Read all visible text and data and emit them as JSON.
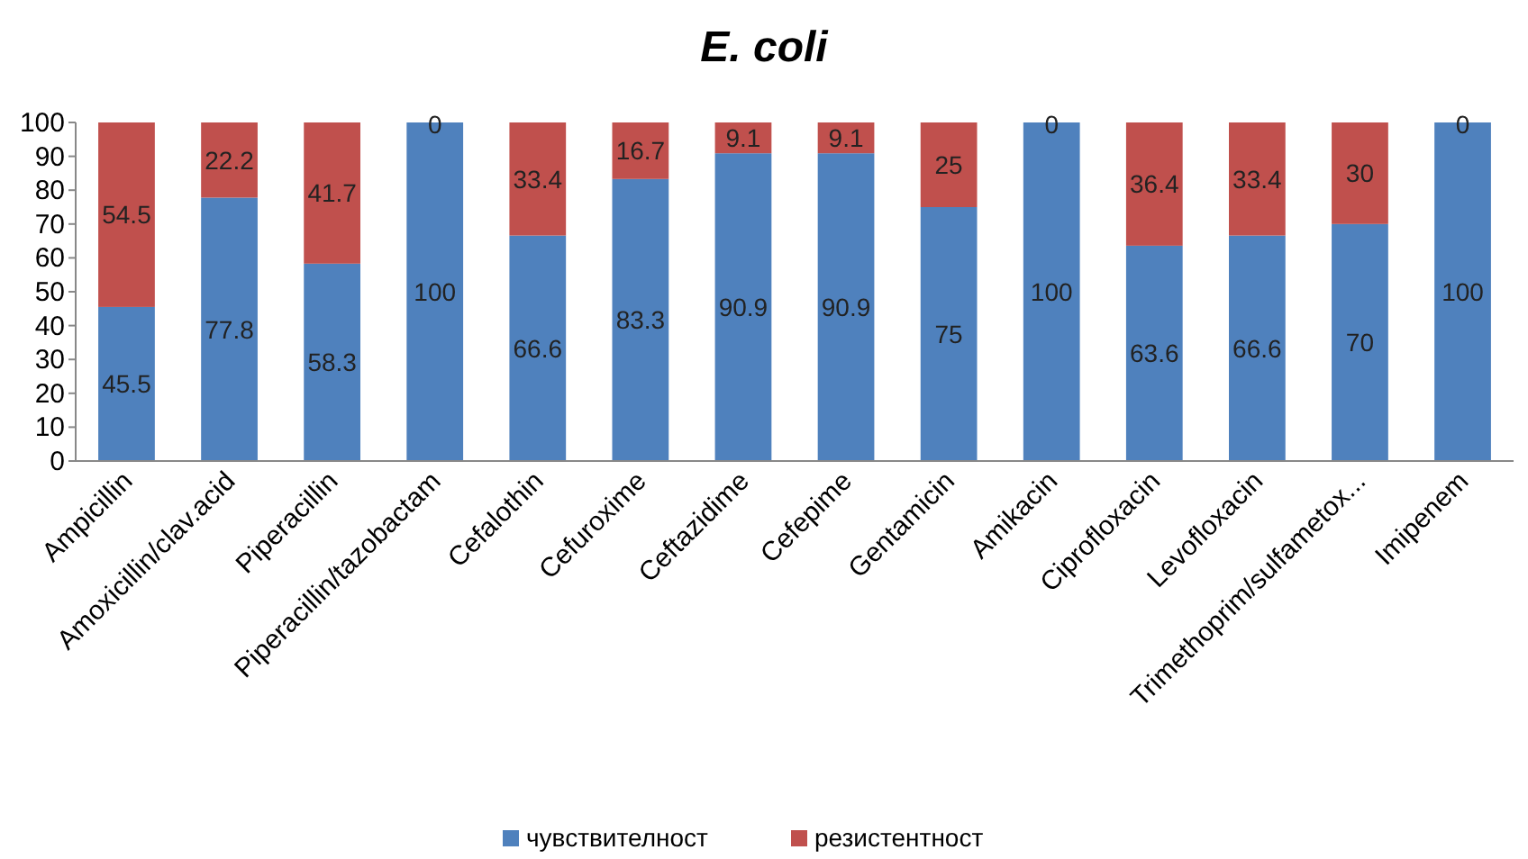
{
  "chart_data": {
    "type": "bar",
    "title": "E. coli",
    "stacked": true,
    "data_labels": true,
    "legend": "bottom",
    "grid": false,
    "categories": [
      "Ampicillin",
      "Amoxicillin/clav.acid",
      "Piperacillin",
      "Piperacillin/tazobactam",
      "Cefalothin",
      "Cefuroxime",
      "Ceftazidime",
      "Cefepime",
      "Gentamicin",
      "Amikacin",
      "Ciprofloxacin",
      "Levofloxacin",
      "Trimethoprim/sulfametox...",
      "Imipenem"
    ],
    "series": [
      {
        "name": "чувствителност",
        "color": "#4f81bd",
        "values": [
          45.5,
          77.8,
          58.3,
          100,
          66.6,
          83.3,
          90.9,
          90.9,
          75,
          100,
          63.6,
          66.6,
          70,
          100
        ]
      },
      {
        "name": "резистентност",
        "color": "#c0504d",
        "values": [
          54.5,
          22.2,
          41.7,
          0,
          33.4,
          16.7,
          9.1,
          9.1,
          25,
          0,
          36.4,
          33.4,
          30,
          0
        ]
      }
    ],
    "ylim": [
      0,
      100
    ],
    "yticks": [
      0,
      10,
      20,
      30,
      40,
      50,
      60,
      70,
      80,
      90,
      100
    ]
  }
}
